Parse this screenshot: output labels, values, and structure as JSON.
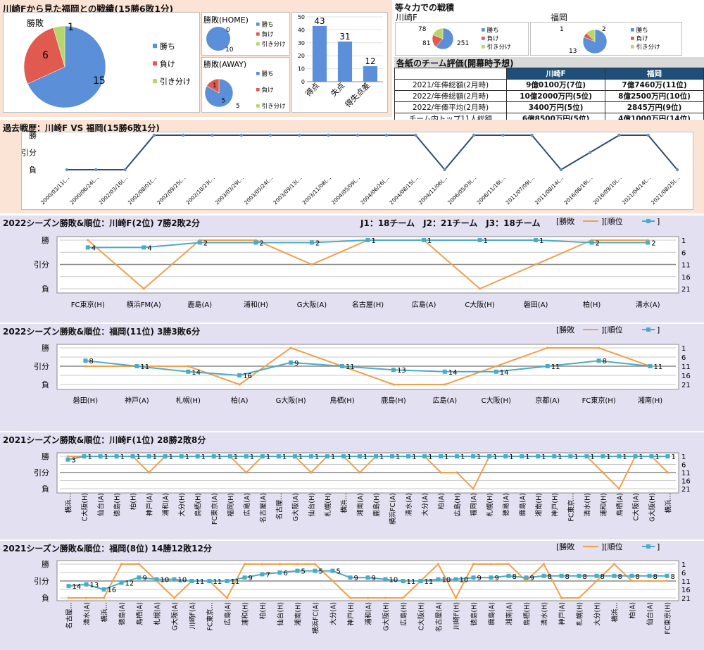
{
  "colors": {
    "win": "#5b8fd8",
    "loss": "#e05a4f",
    "draw": "#b5d76b",
    "bar": "#5b8fd8",
    "history": "#2f4a6d",
    "result": "#f0a04c",
    "rank": "#4bacc6",
    "peach": "#fbe4d5",
    "lavender": "#e3e0f1"
  },
  "summary": {
    "title": "川崎Fから見た福岡との戦績(15勝6敗1分)",
    "overall_title": "勝敗",
    "home_title": "勝敗(HOME)",
    "away_title": "勝敗(AWAY)",
    "legend": [
      "勝ち",
      "負け",
      "引き分け"
    ],
    "overall": [
      15,
      6,
      1
    ],
    "home": [
      10,
      0,
      0
    ],
    "away": [
      5,
      1,
      0
    ],
    "away_labels": [
      "5",
      "1",
      ""
    ],
    "away_extra": "5",
    "bars": {
      "categories": [
        "得点",
        "失点",
        "得失点差"
      ],
      "values": [
        43,
        31,
        12
      ],
      "ylim": [
        0,
        50
      ],
      "ticks": [
        "0",
        "10",
        "20",
        "30",
        "40",
        "50"
      ]
    }
  },
  "equal": {
    "title": "等々力での戦積",
    "kawasaki_label": "川崎F",
    "fukuoka_label": "福岡",
    "kawasaki": [
      251,
      81,
      78
    ],
    "fukuoka": [
      13,
      1,
      2
    ]
  },
  "eval": {
    "title": "各紙のチーム評価(開幕時予想)",
    "header": [
      "",
      "川崎F",
      "福岡"
    ],
    "rows": [
      [
        "2021/年俸総額(2月時)",
        "9億0100万(7位)",
        "7億7460万(11位)"
      ],
      [
        "2022/年俸総額(2月時)",
        "10億2000万円(5位)",
        "8億2500万円(10位)"
      ],
      [
        "2022/年俸平均(2月時)",
        "3400万円(5位)",
        "2845万円(9位)"
      ],
      [
        "チーム内トップ11人総額",
        "6億8500万円(5位)",
        "4億1000万円(14位)"
      ]
    ]
  },
  "history": {
    "title": "過去戦歴：川崎F VS 福岡(15勝6敗1分)",
    "yticks": [
      "勝",
      "引分",
      "負"
    ],
    "dates": [
      "2000/03/11(…",
      "2000/06/24(…",
      "2002/03/16(…",
      "2002/08/01(…",
      "2002/09/25(…",
      "2002/10/23(…",
      "2003/03/29(…",
      "2003/05/24(…",
      "2003/09/13(…",
      "2003/11/08(…",
      "2004/05/09(…",
      "2004/06/26(…",
      "2004/08/15(…",
      "2004/11/06(…",
      "2006/05/03(…",
      "2006/11/18(…",
      "2011/07/09(…",
      "2011/08/14(…",
      "2016/06/18(…",
      "2016/09/10(…",
      "2021/04/14(…",
      "2021/08/25(…"
    ],
    "results": [
      0,
      0,
      0,
      2,
      2,
      2,
      2,
      2,
      2,
      2,
      2,
      2,
      2,
      0,
      2,
      2,
      2,
      0,
      1,
      2,
      2,
      0
    ]
  },
  "chart_data": [
    {
      "type": "line",
      "title": "2022シーズン勝敗&順位：川崎F(2位) 7勝2敗2分",
      "note": "J1：18チーム　J2：21チーム　J3：18チーム",
      "legend": [
        "[勝敗",
        "][順位",
        "]"
      ],
      "y_left_ticks": [
        "勝",
        "引分",
        "負"
      ],
      "y_right_ticks": [
        "1",
        "6",
        "11",
        "16",
        "21"
      ],
      "categories": [
        "FC東京(H)",
        "横浜FM(A)",
        "鹿島(A)",
        "浦和(H)",
        "G大阪(A)",
        "名古屋(H)",
        "広島(A)",
        "C大阪(H)",
        "磐田(A)",
        "柏(H)",
        "清水(A)"
      ],
      "series": [
        {
          "name": "勝敗",
          "values": [
            2,
            0,
            2,
            2,
            1,
            2,
            2,
            0,
            1,
            2,
            2
          ]
        },
        {
          "name": "順位",
          "values": [
            4,
            4,
            2,
            2,
            2,
            1,
            1,
            1,
            1,
            2,
            2
          ]
        }
      ]
    },
    {
      "type": "line",
      "title": "2022シーズン勝敗&順位：福岡(11位) 3勝3敗6分",
      "legend": [
        "[勝敗",
        "][順位",
        "]"
      ],
      "y_left_ticks": [
        "勝",
        "引分",
        "負"
      ],
      "y_right_ticks": [
        "1",
        "6",
        "11",
        "16",
        "21"
      ],
      "categories": [
        "磐田(H)",
        "神戸(A)",
        "札幌(H)",
        "柏(A)",
        "G大阪(H)",
        "鳥栖(H)",
        "鹿島(H)",
        "広島(A)",
        "C大阪(H)",
        "京都(A)",
        "FC東京(H)",
        "湘南(H)"
      ],
      "series": [
        {
          "name": "勝敗",
          "values": [
            1,
            1,
            1,
            0,
            2,
            1,
            0,
            0,
            1,
            2,
            2,
            1
          ]
        },
        {
          "name": "順位",
          "values": [
            8,
            11,
            14,
            16,
            9,
            11,
            13,
            14,
            14,
            11,
            8,
            11
          ]
        }
      ]
    },
    {
      "type": "line",
      "title": "2021シーズン勝敗&順位：川崎F(1位) 28勝2敗8分",
      "y_left_ticks": [
        "勝",
        "引分",
        "負"
      ],
      "y_right_ticks": [
        "1",
        "6",
        "11",
        "16",
        "21"
      ],
      "categories": [
        "横浜…",
        "C大阪(H)",
        "仙台(A)",
        "徳島(H)",
        "柏(H)",
        "神戸(A)",
        "浦和(A)",
        "大分(H)",
        "鳥栖(H)",
        "FC東京(A)",
        "福岡(H)",
        "広島(A)",
        "名古屋(A)",
        "名古屋…",
        "G大阪(A)",
        "仙台(H)",
        "札幌(H)",
        "横浜…",
        "湘南(A)",
        "鹿島(H)",
        "横浜FC(A)",
        "清水(A)",
        "大分(A)",
        "柏(A)",
        "広島(H)",
        "福岡(A)",
        "札幌(H)",
        "徳島(A)",
        "鹿島(A)",
        "湘南(H)",
        "神戸(H)",
        "FC東京…",
        "清水(H)",
        "浦和(H)",
        "鳥栖(A)",
        "C大阪(A)",
        "G大阪(H)",
        "横浜…"
      ],
      "series": [
        {
          "name": "勝敗",
          "values": [
            2,
            2,
            2,
            2,
            2,
            1,
            2,
            2,
            2,
            2,
            2,
            1,
            2,
            2,
            2,
            1,
            2,
            2,
            1,
            2,
            2,
            2,
            2,
            1,
            1,
            0,
            2,
            2,
            2,
            2,
            2,
            2,
            2,
            1,
            0,
            2,
            2,
            1
          ]
        },
        {
          "name": "順位",
          "values": [
            3,
            1,
            1,
            1,
            1,
            1,
            1,
            1,
            1,
            1,
            1,
            1,
            1,
            1,
            1,
            1,
            1,
            1,
            1,
            1,
            1,
            1,
            1,
            1,
            1,
            1,
            1,
            1,
            1,
            1,
            1,
            1,
            1,
            1,
            1,
            1,
            1,
            1
          ]
        }
      ]
    },
    {
      "type": "line",
      "title": "2021シーズン勝敗&順位：福岡(8位) 14勝12敗12分",
      "legend": [
        "[勝敗",
        "][順位",
        "]"
      ],
      "y_left_ticks": [
        "勝",
        "引分",
        "負"
      ],
      "y_right_ticks": [
        "1",
        "6",
        "11",
        "16",
        "21"
      ],
      "categories": [
        "名古屋…",
        "清水(A)",
        "横浜…",
        "徳島(A)",
        "鳥栖(A)",
        "札幌(A)",
        "G大阪(A)",
        "川崎F(A)",
        "FC東京…",
        "広島(A)",
        "浦和(H)",
        "柏(H)",
        "仙台(H)",
        "湘南(H)",
        "横浜FC(A)",
        "大分(A)",
        "神戸(H)",
        "浦和(A)",
        "G大阪(H)",
        "広島(H)",
        "C大阪(H)",
        "名古屋(A)",
        "川崎F(H)",
        "徳島(H)",
        "鹿島(A)",
        "湘南(A)",
        "鳥栖(H)",
        "清水(H)",
        "神戸(A)",
        "札幌(H)",
        "大分(H)",
        "横浜…",
        "柏(A)",
        "仙台(A)",
        "FC東京(H)"
      ],
      "series": [
        {
          "name": "勝敗",
          "values": [
            0,
            0,
            0,
            2,
            2,
            1,
            0,
            1,
            1,
            0,
            2,
            2,
            2,
            2,
            2,
            1,
            0,
            0,
            0,
            0,
            1,
            2,
            0,
            2,
            2,
            2,
            1,
            2,
            0,
            0,
            1,
            2,
            1,
            1,
            1
          ]
        },
        {
          "name": "順位",
          "values": [
            14,
            13,
            16,
            12,
            9,
            10,
            10,
            11,
            11,
            11,
            9,
            7,
            6,
            5,
            5,
            5,
            9,
            9,
            10,
            11,
            11,
            10,
            10,
            9,
            9,
            8,
            9,
            8,
            8,
            8,
            8,
            8,
            8,
            8,
            8
          ]
        }
      ]
    }
  ]
}
